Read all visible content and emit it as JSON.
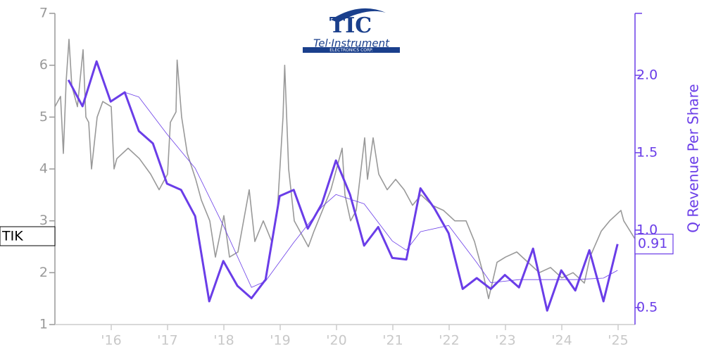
{
  "chart_data": {
    "type": "line",
    "y_axis_label": "Q Revenue Per Share",
    "logo": {
      "mark": "TIC",
      "name": "Tel·Instrument",
      "tagline": "ELECTRONICS CORP."
    },
    "left_marker": "TIK",
    "right_marker": "0.91",
    "xlim": [
      2015.0,
      2025.3
    ],
    "xticks": [
      {
        "value": 2016,
        "label": "'16"
      },
      {
        "value": 2017,
        "label": "'17"
      },
      {
        "value": 2018,
        "label": "'18"
      },
      {
        "value": 2019,
        "label": "'19"
      },
      {
        "value": 2020,
        "label": "'20"
      },
      {
        "value": 2021,
        "label": "'21"
      },
      {
        "value": 2022,
        "label": "'22"
      },
      {
        "value": 2023,
        "label": "'23"
      },
      {
        "value": 2024,
        "label": "'24"
      },
      {
        "value": 2025,
        "label": "'25"
      }
    ],
    "ylim": [
      1,
      7
    ],
    "yticks": [
      1,
      2,
      3,
      4,
      5,
      6,
      7
    ],
    "y2lim": [
      0.39,
      2.4
    ],
    "y2ticks": [
      0.5,
      {
        "value": 1.0,
        "label": "1.0"
      },
      1.5,
      {
        "value": 2.0,
        "label": "2.0"
      }
    ],
    "series": [
      {
        "color": "#999999",
        "axis": "y",
        "x": [
          2015.0,
          2015.1,
          2015.15,
          2015.2,
          2015.25,
          2015.3,
          2015.4,
          2015.5,
          2015.55,
          2015.6,
          2015.65,
          2015.75,
          2015.85,
          2016.0,
          2016.05,
          2016.1,
          2016.3,
          2016.5,
          2016.7,
          2016.85,
          2017.0,
          2017.05,
          2017.15,
          2017.17,
          2017.25,
          2017.35,
          2017.5,
          2017.6,
          2017.75,
          2017.85,
          2018.0,
          2018.1,
          2018.25,
          2018.4,
          2018.45,
          2018.55,
          2018.7,
          2018.85,
          2018.95,
          2019.05,
          2019.08,
          2019.15,
          2019.25,
          2019.4,
          2019.5,
          2019.6,
          2019.75,
          2019.9,
          2020.1,
          2020.15,
          2020.25,
          2020.35,
          2020.5,
          2020.55,
          2020.65,
          2020.75,
          2020.9,
          2021.05,
          2021.2,
          2021.35,
          2021.5,
          2021.7,
          2021.9,
          2022.1,
          2022.3,
          2022.45,
          2022.6,
          2022.7,
          2022.85,
          2023.0,
          2023.2,
          2023.4,
          2023.6,
          2023.8,
          2024.0,
          2024.2,
          2024.4,
          2024.5,
          2024.7,
          2024.85,
          2025.05,
          2025.1,
          2025.3
        ],
        "values": [
          5.2,
          5.4,
          4.3,
          5.7,
          6.5,
          5.6,
          5.2,
          6.3,
          5.0,
          4.9,
          4.0,
          5.0,
          5.3,
          5.2,
          4.0,
          4.2,
          4.4,
          4.2,
          3.9,
          3.6,
          3.9,
          4.9,
          5.1,
          6.1,
          5.0,
          4.3,
          3.8,
          3.4,
          3.0,
          2.3,
          3.1,
          2.3,
          2.4,
          3.3,
          3.6,
          2.6,
          3.0,
          2.6,
          3.2,
          5.0,
          6.0,
          4.0,
          3.0,
          2.7,
          2.5,
          2.8,
          3.2,
          3.6,
          4.4,
          3.5,
          3.0,
          3.2,
          4.6,
          3.8,
          4.6,
          3.9,
          3.6,
          3.8,
          3.6,
          3.3,
          3.5,
          3.3,
          3.2,
          3.0,
          3.0,
          2.6,
          2.0,
          1.5,
          2.2,
          2.3,
          2.4,
          2.2,
          2.0,
          2.1,
          1.9,
          2.0,
          1.8,
          2.3,
          2.8,
          3.0,
          3.2,
          3.0,
          2.65
        ]
      },
      {
        "color": "#6a3de8",
        "axis": "y2",
        "x": [
          2015.24,
          2015.49,
          2015.74,
          2015.99,
          2016.24,
          2016.49,
          2016.74,
          2016.99,
          2017.24,
          2017.49,
          2017.74,
          2017.99,
          2018.24,
          2018.49,
          2018.74,
          2018.99,
          2019.24,
          2019.49,
          2019.74,
          2019.99,
          2020.24,
          2020.49,
          2020.74,
          2020.99,
          2021.24,
          2021.49,
          2021.74,
          2021.99,
          2022.24,
          2022.49,
          2022.74,
          2022.99,
          2023.24,
          2023.49,
          2023.74,
          2023.99,
          2024.24,
          2024.49,
          2024.74,
          2024.99
        ],
        "values": [
          1.97,
          1.8,
          2.09,
          1.83,
          1.89,
          1.64,
          1.56,
          1.3,
          1.26,
          1.09,
          0.54,
          0.8,
          0.64,
          0.56,
          0.68,
          1.22,
          1.26,
          1.01,
          1.17,
          1.45,
          1.23,
          0.9,
          1.02,
          0.82,
          0.81,
          1.27,
          1.14,
          0.98,
          0.62,
          0.69,
          0.62,
          0.71,
          0.63,
          0.88,
          0.48,
          0.74,
          0.61,
          0.87,
          0.54,
          0.91
        ]
      },
      {
        "color": "#6a3de8",
        "axis": "y2",
        "x": [
          2016.24,
          2016.49,
          2016.99,
          2017.49,
          2017.99,
          2018.49,
          2018.74,
          2019.24,
          2019.74,
          2019.99,
          2020.49,
          2020.99,
          2021.24,
          2021.49,
          2021.99,
          2022.49,
          2022.74,
          2023.24,
          2023.74,
          2024.24,
          2024.74,
          2024.99
        ],
        "values": [
          1.89,
          1.86,
          1.62,
          1.4,
          1.03,
          0.63,
          0.67,
          0.92,
          1.15,
          1.23,
          1.17,
          0.93,
          0.87,
          0.99,
          1.03,
          0.79,
          0.66,
          0.68,
          0.68,
          0.68,
          0.69,
          0.74
        ]
      }
    ]
  }
}
